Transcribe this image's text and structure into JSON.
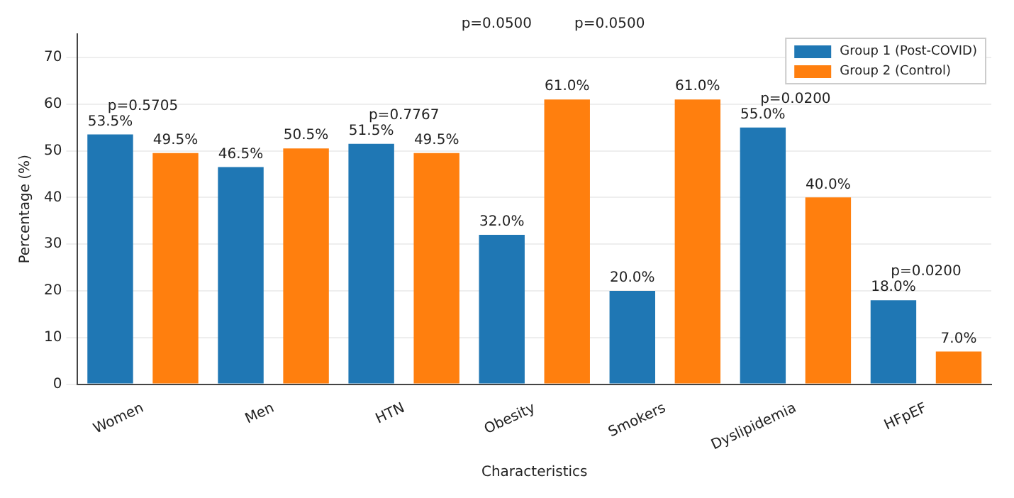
{
  "chart_data": {
    "type": "bar",
    "xlabel": "Characteristics",
    "ylabel": "Percentage (%)",
    "categories": [
      "Women",
      "Men",
      "HTN",
      "Obesity",
      "Smokers",
      "Dyslipidemia",
      "HFpEF"
    ],
    "series": [
      {
        "name": "Group 1 (Post-COVID)",
        "color": "#1f77b4",
        "values": [
          53.5,
          46.5,
          51.5,
          32.0,
          20.0,
          55.0,
          18.0
        ],
        "value_labels": [
          "53.5%",
          "46.5%",
          "51.5%",
          "32.0%",
          "20.0%",
          "55.0%",
          "18.0%"
        ]
      },
      {
        "name": "Group 2 (Control)",
        "color": "#ff7f0e",
        "values": [
          49.5,
          50.5,
          49.5,
          61.0,
          61.0,
          40.0,
          7.0
        ],
        "value_labels": [
          "49.5%",
          "50.5%",
          "49.5%",
          "61.0%",
          "61.0%",
          "40.0%",
          "7.0%"
        ]
      }
    ],
    "ylim": [
      0,
      75
    ],
    "yticks": [
      0,
      10,
      20,
      30,
      40,
      50,
      60,
      70
    ],
    "grid": "y",
    "legend": "top right",
    "annotations": [
      {
        "text": "p=0.5705",
        "x": "Women",
        "y": 53.5
      },
      {
        "text": "p=0.7767",
        "x": "HTN",
        "y": 51.5
      },
      "p=0.0500",
      "p=0.0500",
      {
        "text": "p=0.0200",
        "x": "Dyslipidemia",
        "y": 55.0
      },
      {
        "text": "p=0.0200",
        "x": "HFpEF",
        "y": 18.0
      }
    ]
  }
}
